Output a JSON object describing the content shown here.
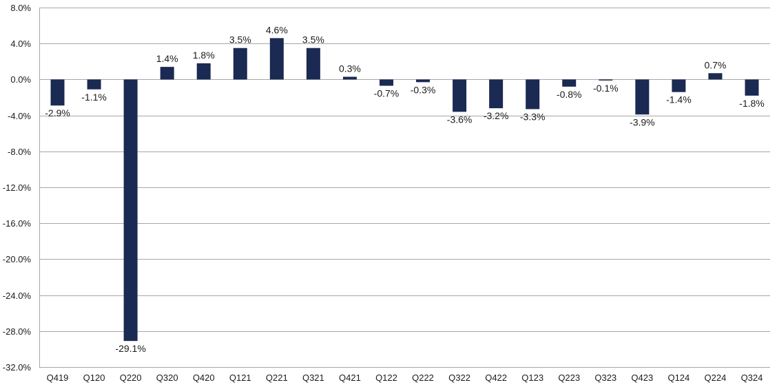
{
  "chart_data": {
    "type": "bar",
    "title": "",
    "xlabel": "",
    "ylabel": "",
    "categories": [
      "Q419",
      "Q120",
      "Q220",
      "Q320",
      "Q420",
      "Q121",
      "Q221",
      "Q321",
      "Q421",
      "Q122",
      "Q222",
      "Q322",
      "Q422",
      "Q123",
      "Q223",
      "Q323",
      "Q423",
      "Q124",
      "Q224",
      "Q324"
    ],
    "values": [
      -2.9,
      -1.1,
      -29.1,
      1.4,
      1.8,
      3.5,
      4.6,
      3.5,
      0.3,
      -0.7,
      -0.3,
      -3.6,
      -3.2,
      -3.3,
      -0.8,
      -0.1,
      -3.9,
      -1.4,
      0.7,
      -1.8
    ],
    "data_labels": [
      "-2.9%",
      "-1.1%",
      "-29.1%",
      "1.4%",
      "1.8%",
      "3.5%",
      "4.6%",
      "3.5%",
      "0.3%",
      "-0.7%",
      "-0.3%",
      "-3.6%",
      "-3.2%",
      "-3.3%",
      "-0.8%",
      "-0.1%",
      "-3.9%",
      "-1.4%",
      "0.7%",
      "-1.8%"
    ],
    "ylim": [
      -32,
      8
    ],
    "yticks": [
      8,
      4,
      0,
      -4,
      -8,
      -12,
      -16,
      -20,
      -24,
      -28,
      -32
    ],
    "ytick_labels": [
      "8.0%",
      "4.0%",
      "0.0%",
      "-4.0%",
      "-8.0%",
      "-12.0%",
      "-16.0%",
      "-20.0%",
      "-24.0%",
      "-28.0%",
      "-32.0%"
    ],
    "grid": true,
    "legend": "none",
    "bar_color": "#1b2a52",
    "grid_color": "#a6a6a6",
    "text_color": "#1a1a1a"
  }
}
